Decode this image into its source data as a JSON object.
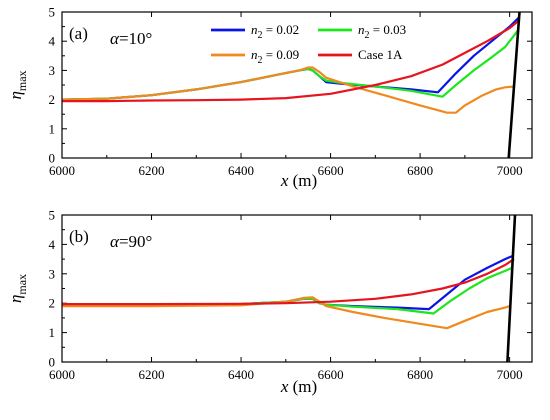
{
  "chart_data": [
    {
      "type": "line",
      "panel_label": "(a)",
      "angle_label": "α=10°",
      "xlim": [
        6000,
        7050
      ],
      "ylim": [
        0,
        5
      ],
      "x_ticks": [
        6000,
        6200,
        6400,
        6600,
        6800,
        7000
      ],
      "y_ticks": [
        0,
        1,
        2,
        3,
        4,
        5
      ],
      "xlabel": "x (m)",
      "ylabel": "η_max",
      "legend_position": "top",
      "series": [
        {
          "name": "n2 = 0.02",
          "color": "#0a14e6",
          "x": [
            6000,
            6100,
            6200,
            6300,
            6400,
            6480,
            6530,
            6550,
            6560,
            6575,
            6590,
            6620,
            6700,
            6780,
            6840,
            6880,
            6920,
            6960,
            7000,
            7020
          ],
          "y": [
            2.0,
            2.03,
            2.15,
            2.35,
            2.6,
            2.85,
            3.0,
            3.05,
            3.0,
            2.8,
            2.6,
            2.55,
            2.45,
            2.35,
            2.25,
            2.9,
            3.5,
            4.0,
            4.5,
            4.8
          ]
        },
        {
          "name": "n2 = 0.03",
          "color": "#1ee61e",
          "x": [
            6000,
            6100,
            6200,
            6300,
            6400,
            6480,
            6530,
            6550,
            6560,
            6575,
            6590,
            6620,
            6700,
            6780,
            6850,
            6880,
            6920,
            6960,
            6990,
            7010,
            7020
          ],
          "y": [
            2.0,
            2.03,
            2.15,
            2.35,
            2.6,
            2.85,
            3.0,
            3.05,
            3.0,
            2.8,
            2.65,
            2.58,
            2.45,
            2.3,
            2.1,
            2.5,
            3.0,
            3.45,
            3.8,
            4.2,
            4.4
          ]
        },
        {
          "name": "n2 = 0.09",
          "color": "#f08a1e",
          "x": [
            6000,
            6100,
            6200,
            6300,
            6400,
            6480,
            6530,
            6550,
            6560,
            6575,
            6590,
            6650,
            6720,
            6800,
            6860,
            6880,
            6900,
            6940,
            6970,
            6990,
            7010
          ],
          "y": [
            2.0,
            2.03,
            2.15,
            2.35,
            2.6,
            2.85,
            3.0,
            3.1,
            3.1,
            2.95,
            2.75,
            2.45,
            2.15,
            1.8,
            1.55,
            1.55,
            1.8,
            2.15,
            2.35,
            2.42,
            2.45
          ]
        },
        {
          "name": "Case 1A",
          "color": "#e6141e",
          "x": [
            6000,
            6100,
            6200,
            6300,
            6400,
            6500,
            6600,
            6700,
            6780,
            6850,
            6900,
            6950,
            7000,
            7020
          ],
          "y": [
            1.95,
            1.95,
            1.97,
            1.98,
            2.0,
            2.05,
            2.2,
            2.5,
            2.8,
            3.2,
            3.6,
            4.0,
            4.45,
            4.7
          ]
        },
        {
          "name": "",
          "color": "#000000",
          "x": [
            6998,
            7022
          ],
          "y": [
            0,
            5
          ]
        }
      ]
    },
    {
      "type": "line",
      "panel_label": "(b)",
      "angle_label": "α=90°",
      "xlim": [
        6000,
        7050
      ],
      "ylim": [
        0,
        5
      ],
      "x_ticks": [
        6000,
        6200,
        6400,
        6600,
        6800,
        7000
      ],
      "y_ticks": [
        0,
        1,
        2,
        3,
        4,
        5
      ],
      "xlabel": "x (m)",
      "ylabel": "η_max",
      "series": [
        {
          "name": "n2 = 0.02",
          "color": "#0a14e6",
          "x": [
            6000,
            6200,
            6400,
            6500,
            6540,
            6560,
            6575,
            6590,
            6650,
            6750,
            6820,
            6860,
            6900,
            6950,
            6990,
            7005
          ],
          "y": [
            1.95,
            1.95,
            1.97,
            2.05,
            2.15,
            2.15,
            2.0,
            1.95,
            1.9,
            1.85,
            1.8,
            2.3,
            2.8,
            3.2,
            3.5,
            3.6
          ]
        },
        {
          "name": "n2 = 0.03",
          "color": "#1ee61e",
          "x": [
            6000,
            6200,
            6400,
            6500,
            6540,
            6560,
            6575,
            6590,
            6650,
            6750,
            6830,
            6870,
            6910,
            6950,
            6990,
            7005
          ],
          "y": [
            1.95,
            1.95,
            1.97,
            2.05,
            2.15,
            2.15,
            2.0,
            1.95,
            1.88,
            1.8,
            1.65,
            2.1,
            2.5,
            2.85,
            3.1,
            3.2
          ]
        },
        {
          "name": "n2 = 0.09",
          "color": "#f08a1e",
          "x": [
            6000,
            6200,
            6400,
            6500,
            6540,
            6560,
            6575,
            6590,
            6650,
            6720,
            6800,
            6860,
            6900,
            6950,
            6990,
            7000
          ],
          "y": [
            1.9,
            1.9,
            1.93,
            2.05,
            2.18,
            2.2,
            2.05,
            1.9,
            1.7,
            1.5,
            1.3,
            1.15,
            1.4,
            1.7,
            1.85,
            1.9
          ]
        },
        {
          "name": "Case 1A",
          "color": "#e6141e",
          "x": [
            6000,
            6200,
            6400,
            6500,
            6600,
            6700,
            6780,
            6850,
            6900,
            6950,
            6990,
            7010
          ],
          "y": [
            1.97,
            1.97,
            1.98,
            2.0,
            2.05,
            2.15,
            2.3,
            2.5,
            2.7,
            3.0,
            3.3,
            3.5
          ]
        },
        {
          "name": "",
          "color": "#000000",
          "x": [
            6995,
            7012
          ],
          "y": [
            0,
            5
          ]
        }
      ]
    }
  ]
}
